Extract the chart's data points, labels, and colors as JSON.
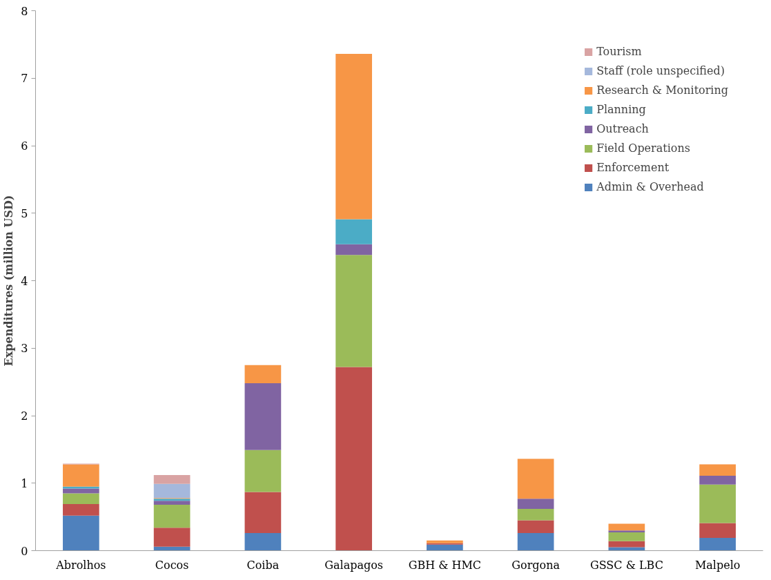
{
  "chart_data": {
    "type": "bar",
    "stacked": true,
    "ylabel": "Expenditures (million USD)",
    "categories": [
      "Abrolhos",
      "Cocos",
      "Coiba",
      "Galapagos",
      "GBH & HMC",
      "Gorgona",
      "GSSC & LBC",
      "Malpelo"
    ],
    "series": [
      {
        "name": "Admin & Overhead",
        "color": "#4f81bd",
        "values": [
          0.52,
          0.06,
          0.26,
          0,
          0.09,
          0.26,
          0.05,
          0.19
        ]
      },
      {
        "name": "Enforcement",
        "color": "#c0504d",
        "values": [
          0.17,
          0.28,
          0.61,
          2.72,
          0.02,
          0.19,
          0.09,
          0.22
        ]
      },
      {
        "name": "Field Operations",
        "color": "#9bbb59",
        "values": [
          0.16,
          0.34,
          0.62,
          1.66,
          0,
          0.17,
          0.13,
          0.57
        ]
      },
      {
        "name": "Outreach",
        "color": "#8064a2",
        "values": [
          0.07,
          0.06,
          0.99,
          0.16,
          0,
          0.15,
          0.03,
          0.13
        ]
      },
      {
        "name": "Planning",
        "color": "#4bacc6",
        "values": [
          0.03,
          0.03,
          0,
          0.37,
          0,
          0,
          0,
          0
        ]
      },
      {
        "name": "Research & Monitoring",
        "color": "#f79646",
        "values": [
          0.33,
          0.01,
          0.27,
          2.45,
          0.04,
          0.59,
          0.1,
          0.17
        ]
      },
      {
        "name": "Staff (role unspecified)",
        "color": "#a5b8dc",
        "values": [
          0,
          0.21,
          0,
          0,
          0,
          0,
          0,
          0
        ]
      },
      {
        "name": "Tourism",
        "color": "#d9a3a3",
        "values": [
          0.01,
          0.13,
          0,
          0,
          0,
          0,
          0,
          0
        ]
      }
    ],
    "ylim": [
      0,
      8
    ],
    "yticks": [
      0,
      1,
      2,
      3,
      4,
      5,
      6,
      7,
      8
    ],
    "grid": false,
    "legend": "top right"
  }
}
